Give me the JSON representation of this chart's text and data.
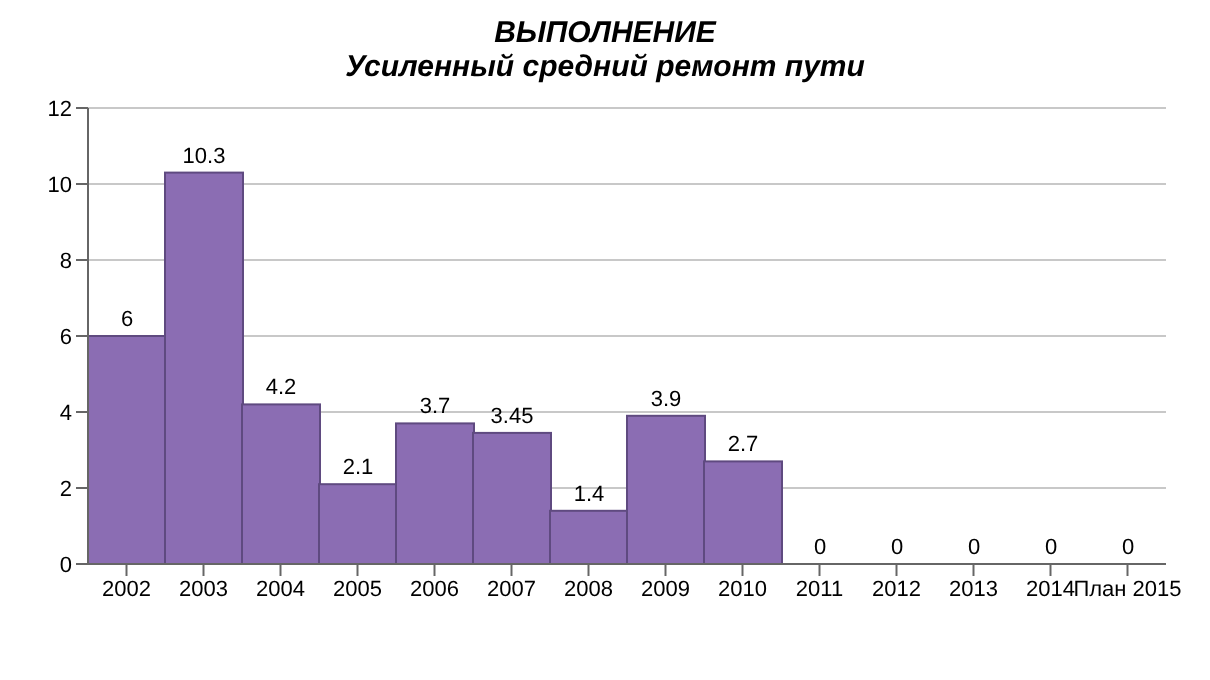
{
  "chart_data": {
    "type": "bar",
    "title": "ВЫПОЛНЕНИЕ",
    "subtitle": "Усиленный средний ремонт пути",
    "categories": [
      "2002",
      "2003",
      "2004",
      "2005",
      "2006",
      "2007",
      "2008",
      "2009",
      "2010",
      "2011",
      "2012",
      "2013",
      "2014",
      "План 2015"
    ],
    "values": [
      6,
      10.3,
      4.2,
      2.1,
      3.7,
      3.45,
      1.4,
      3.9,
      2.7,
      0,
      0,
      0,
      0,
      0
    ],
    "color": "#8b6db3",
    "ylim": [
      0,
      12
    ],
    "yticks": [
      0,
      2,
      4,
      6,
      8,
      10,
      12
    ],
    "grid": "y",
    "data_labels": true
  }
}
